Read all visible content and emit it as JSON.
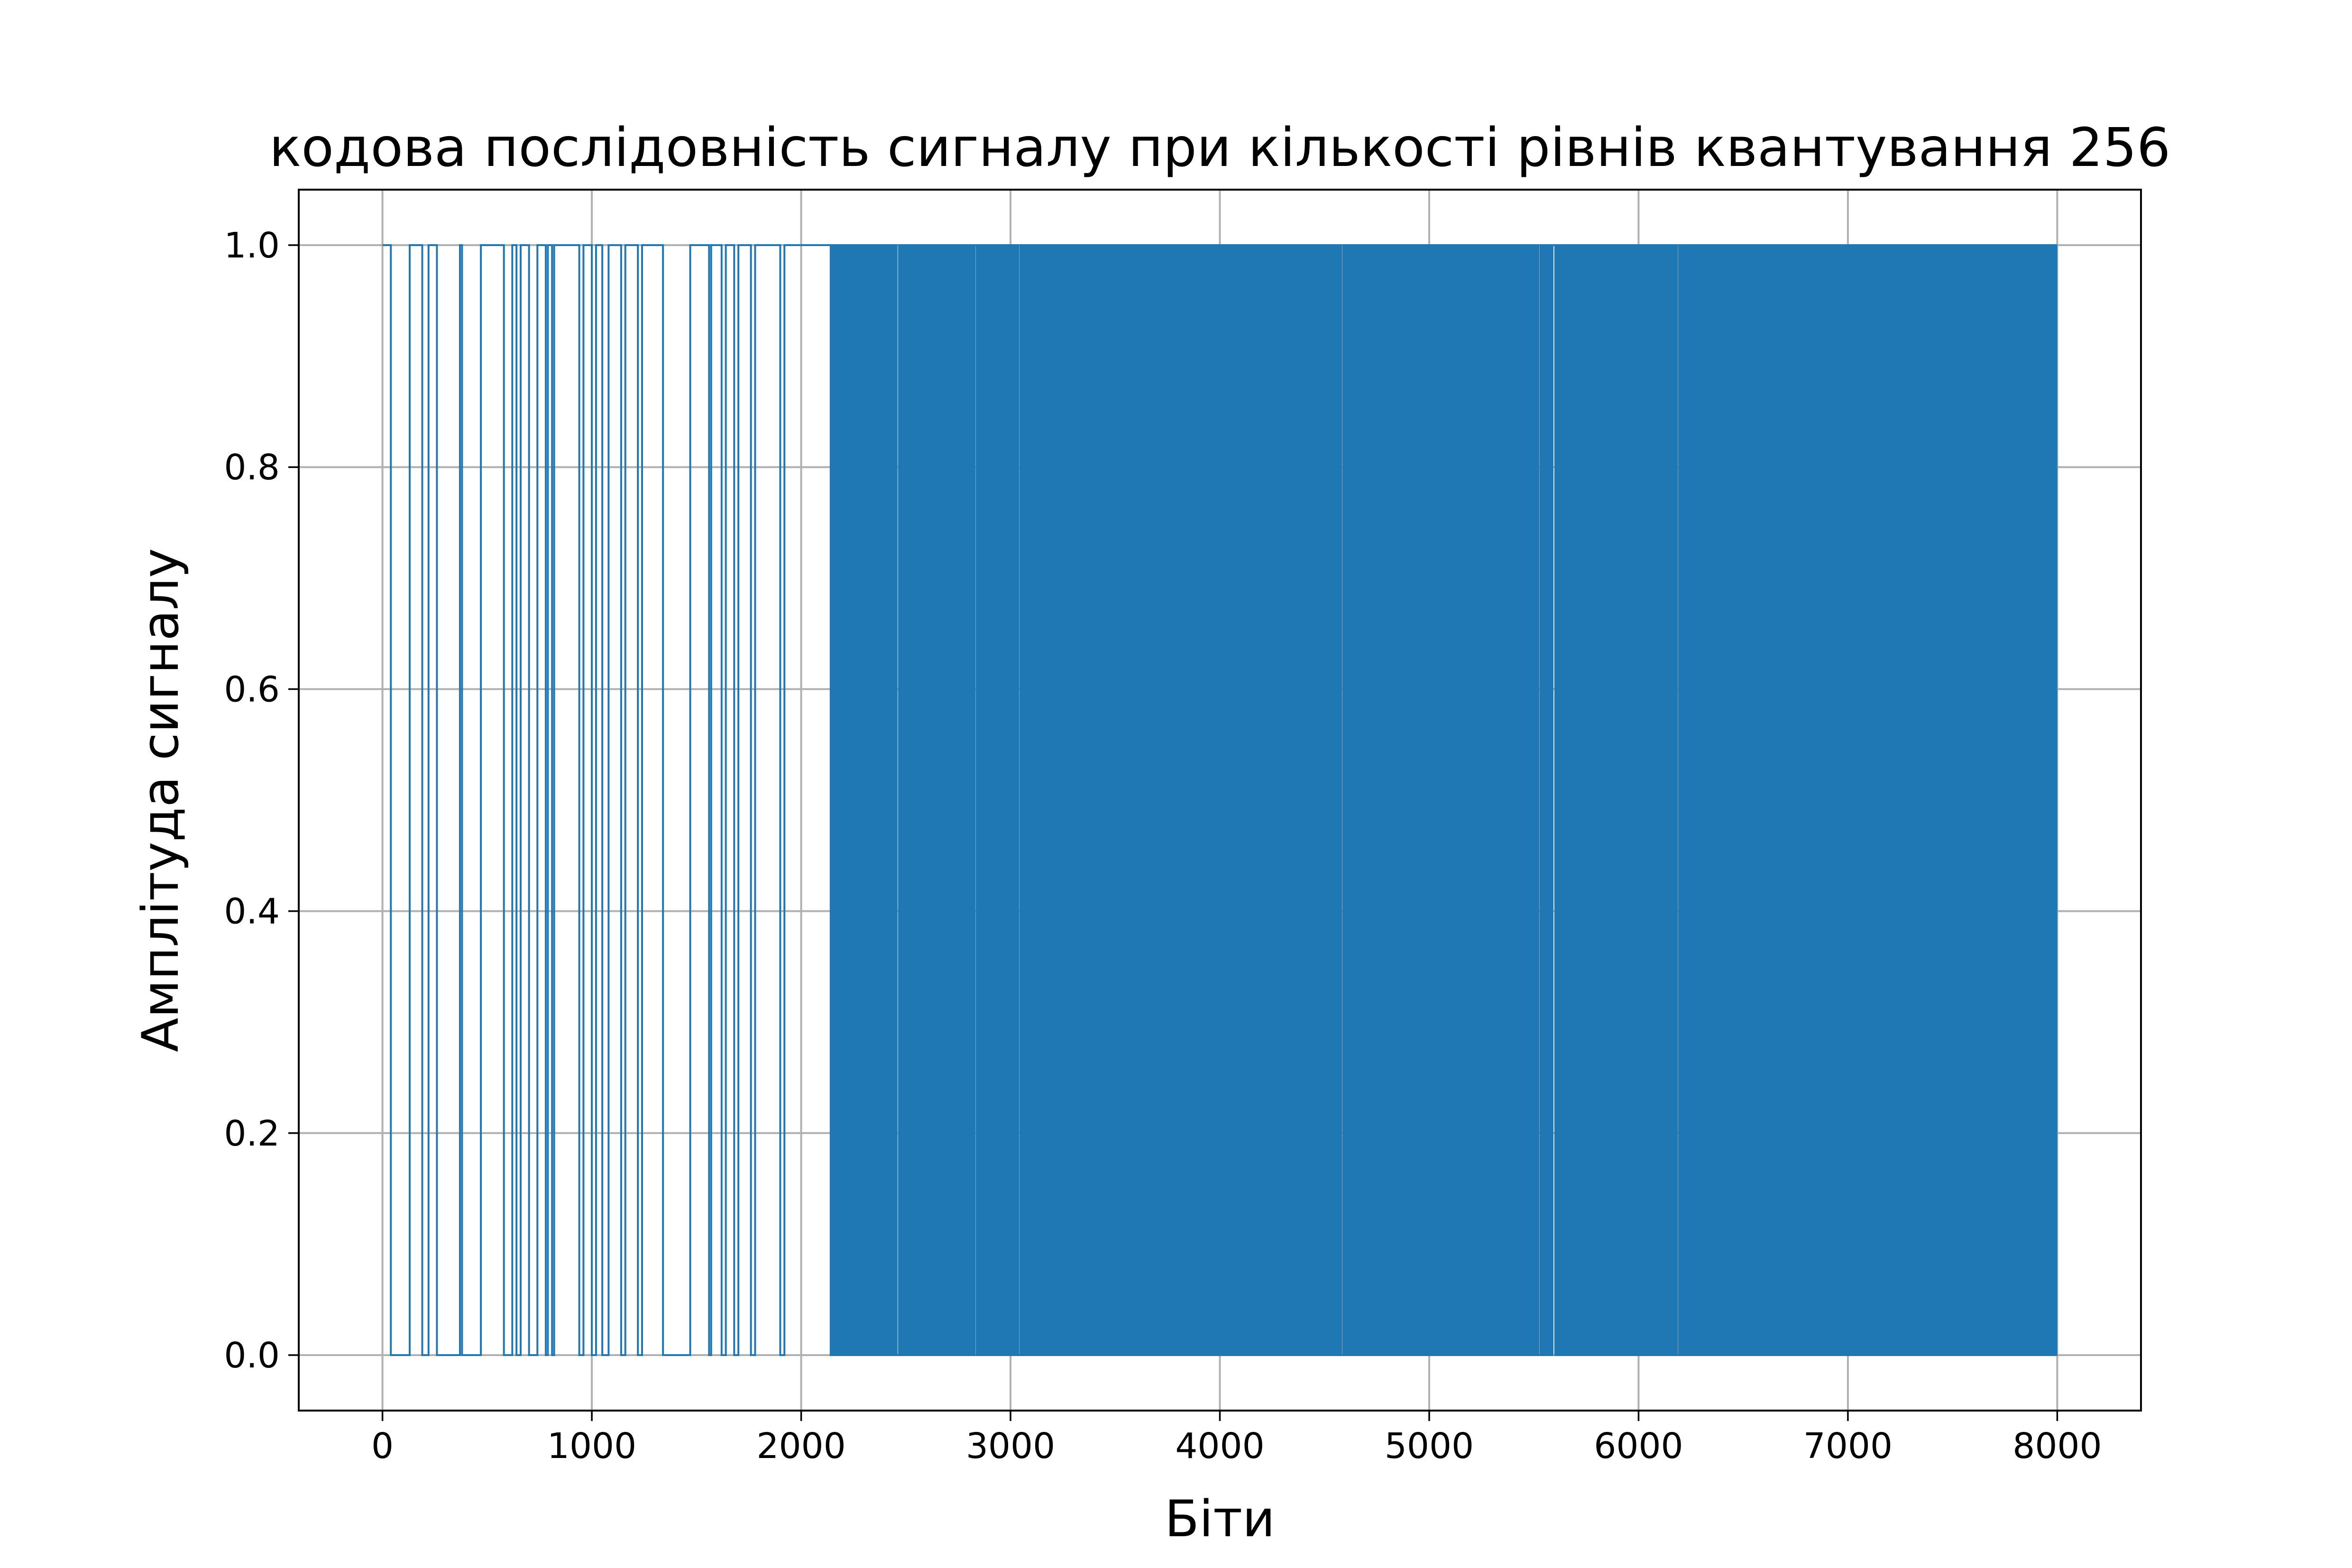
{
  "chart_data": {
    "type": "line",
    "title": "кодова послідовність сигналу при кількості рівнів квантування 256",
    "xlabel": "Біти",
    "ylabel": "Амплітуда сигналу",
    "xlim": [
      -400,
      8400
    ],
    "ylim": [
      -0.05,
      1.05
    ],
    "x_ticks": [
      0,
      1000,
      2000,
      3000,
      4000,
      5000,
      6000,
      7000,
      8000
    ],
    "x_tick_labels": [
      "0",
      "1000",
      "2000",
      "3000",
      "4000",
      "5000",
      "6000",
      "7000",
      "8000"
    ],
    "y_ticks": [
      0.0,
      0.2,
      0.4,
      0.6,
      0.8,
      1.0
    ],
    "y_tick_labels": [
      "0.0",
      "0.2",
      "0.4",
      "0.6",
      "0.8",
      "1.0"
    ],
    "grid": true,
    "series": [
      {
        "color": "#1f77b4",
        "bits": 8000,
        "x_range": [
          0,
          8000
        ],
        "values_range": [
          0,
          1
        ],
        "high_segments_approx": [
          [
            0,
            40
          ],
          [
            130,
            190
          ],
          [
            220,
            260
          ],
          [
            370,
            380
          ],
          [
            470,
            580
          ],
          [
            620,
            640
          ],
          [
            660,
            700
          ],
          [
            740,
            780
          ],
          [
            790,
            810
          ],
          [
            820,
            940
          ],
          [
            960,
            1000
          ],
          [
            1020,
            1050
          ],
          [
            1080,
            1140
          ],
          [
            1160,
            1220
          ],
          [
            1240,
            1340
          ],
          [
            1470,
            1560
          ],
          [
            1570,
            1620
          ],
          [
            1640,
            1680
          ],
          [
            1700,
            1760
          ],
          [
            1780,
            1900
          ],
          [
            1920,
            2140
          ]
        ],
        "dense_random_from": 2140
      }
    ]
  }
}
